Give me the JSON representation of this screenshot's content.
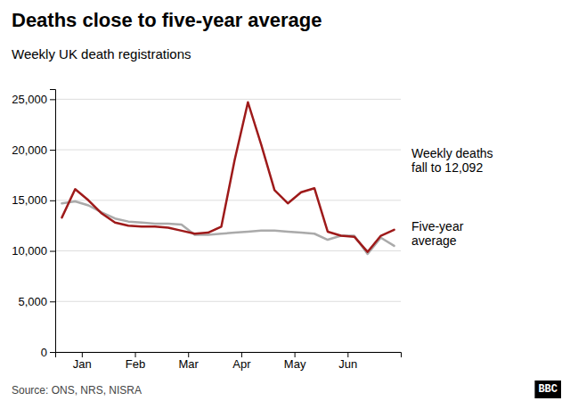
{
  "chart_data": {
    "type": "line",
    "title": "Deaths close to five-year average",
    "subtitle": "Weekly UK death registrations",
    "source": "Source: ONS, NRS, NISRA",
    "logo": "BBC",
    "annotations": [
      "Weekly deaths\nfall to 12,092",
      "Five-year\naverage"
    ],
    "x": [
      0,
      1,
      2,
      3,
      4,
      5,
      6,
      7,
      8,
      9,
      10,
      11,
      12,
      13,
      14,
      15,
      16,
      17,
      18,
      19,
      20,
      21,
      22,
      23,
      24,
      25
    ],
    "series": [
      {
        "color": "#aaaaaa",
        "values": [
          14700,
          14900,
          14500,
          13800,
          13200,
          12900,
          12800,
          12700,
          12700,
          12600,
          11600,
          11600,
          11700,
          11800,
          11900,
          12000,
          12000,
          11900,
          11800,
          11700,
          11100,
          11500,
          11500,
          9700,
          11300,
          10500
        ]
      },
      {
        "color": "#9e1a1a",
        "values": [
          13300,
          16100,
          15000,
          13700,
          12800,
          12500,
          12400,
          12400,
          12300,
          12000,
          11700,
          11800,
          12400,
          19000,
          24700,
          20500,
          16000,
          14700,
          15800,
          16200,
          11900,
          11500,
          11400,
          9900,
          11500,
          12092
        ]
      }
    ],
    "xlim": [
      -0.5,
      25.5
    ],
    "xticks": [
      {
        "value": 1.5,
        "label": "Jan"
      },
      {
        "value": 5.5,
        "label": "Feb"
      },
      {
        "value": 9.5,
        "label": "Mar"
      },
      {
        "value": 13.5,
        "label": "Apr"
      },
      {
        "value": 17.5,
        "label": "May"
      },
      {
        "value": 21.5,
        "label": "Jun"
      }
    ],
    "ylim": [
      0,
      26000
    ],
    "yticks": [
      0,
      {
        "value": 5000,
        "label": "5,000"
      },
      {
        "value": 10000,
        "label": "10,000"
      },
      {
        "value": 15000,
        "label": "15,000"
      },
      {
        "value": 20000,
        "label": "20,000"
      },
      {
        "value": 25000,
        "label": "25,000"
      }
    ],
    "grid": true
  }
}
